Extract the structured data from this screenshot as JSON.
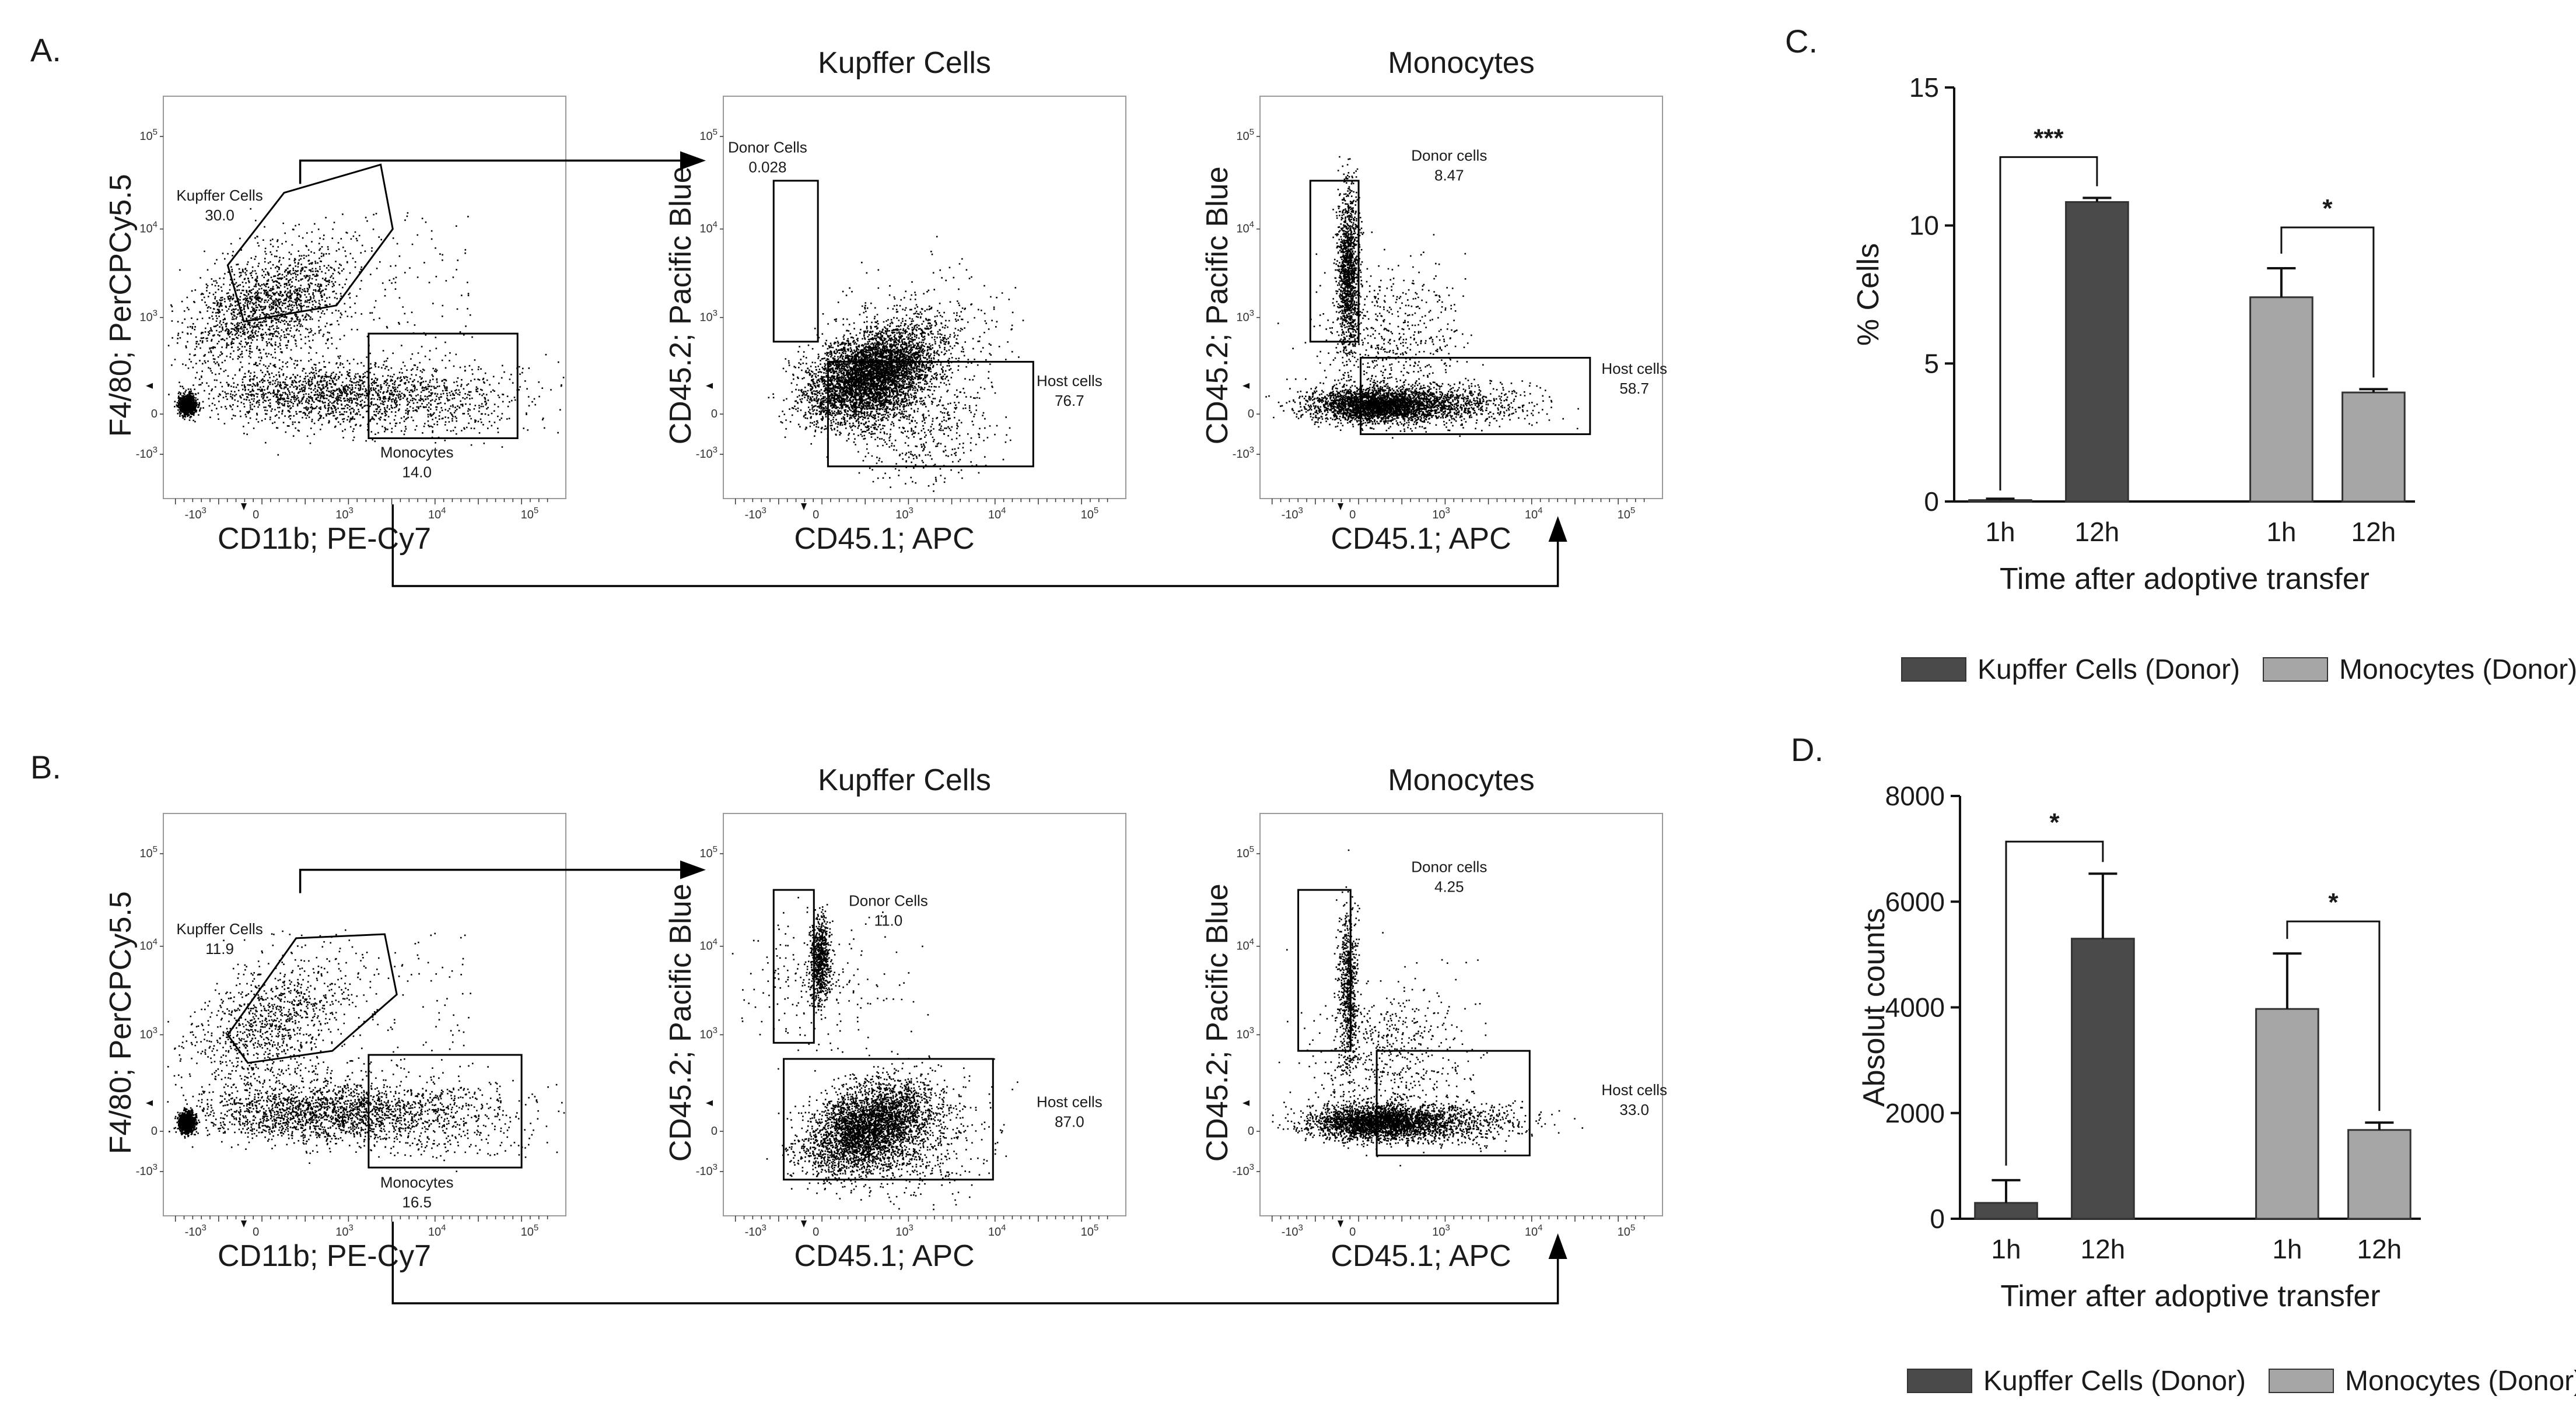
{
  "panels": {
    "a": {
      "letter": "A.",
      "kc_title": "Kupffer Cells",
      "mo_title": "Monocytes"
    },
    "b": {
      "letter": "B.",
      "kc_title": "Kupffer Cells",
      "mo_title": "Monocytes"
    },
    "c": {
      "letter": "C."
    },
    "d": {
      "letter": "D."
    }
  },
  "flow": {
    "axes": {
      "f480": "F4/80; PerCPCy5.5",
      "cd11b": "CD11b; PE-Cy7",
      "cd452": "CD45.2; Pacific Blue",
      "cd451": "CD45.1; APC"
    },
    "ticks": {
      "y_exp": [
        "10^5",
        "10^4",
        "10^3",
        "0",
        "-10^3"
      ],
      "x_exp": [
        "-10^3",
        "0",
        "10^3",
        "10^4",
        "10^5"
      ]
    },
    "a": {
      "gate_kc_name": "Kupffer Cells",
      "gate_kc_value": "30.0",
      "gate_mo_name": "Monocytes",
      "gate_mo_value": "14.0",
      "kc_donor_name": "Donor Cells",
      "kc_donor_value": "0.028",
      "kc_host_name": "Host cells",
      "kc_host_value": "76.7",
      "mo_donor_name": "Donor cells",
      "mo_donor_value": "8.47",
      "mo_host_name": "Host cells",
      "mo_host_value": "58.7"
    },
    "b": {
      "gate_kc_name": "Kupffer Cells",
      "gate_kc_value": "11.9",
      "gate_mo_name": "Monocytes",
      "gate_mo_value": "16.5",
      "kc_donor_name": "Donor Cells",
      "kc_donor_value": "11.0",
      "kc_host_name": "Host cells",
      "kc_host_value": "87.0",
      "mo_donor_name": "Donor cells",
      "mo_donor_value": "4.25",
      "mo_host_name": "Host cells",
      "mo_host_value": "33.0"
    }
  },
  "chart_data": [
    {
      "panel": "C.",
      "type": "bar",
      "title": "",
      "xlabel": "Time after adoptive transfer",
      "ylabel": "% Cells",
      "ylim": [
        0,
        15
      ],
      "yticks": [
        0,
        5,
        10,
        15
      ],
      "categories": [
        "1h",
        "12h",
        "1h",
        "12h"
      ],
      "values": [
        0.05,
        10.85,
        7.4,
        3.95
      ],
      "errors": [
        0.05,
        0.15,
        1.05,
        0.12
      ],
      "groups": [
        "Kupffer Cells (Donor)",
        "Kupffer Cells (Donor)",
        "Monocytes (Donor)",
        "Monocytes (Donor)"
      ],
      "significance": [
        {
          "between": [
            0,
            1
          ],
          "label": "***"
        },
        {
          "between": [
            2,
            3
          ],
          "label": "*"
        }
      ],
      "legend": [
        {
          "name": "Kupffer Cells (Donor)",
          "color": "#4a4a4a"
        },
        {
          "name": "Monocytes (Donor)",
          "color": "#a6a6a6"
        }
      ]
    },
    {
      "panel": "D.",
      "type": "bar",
      "title": "",
      "xlabel": "Timer after adoptive transfer",
      "ylabel": "Absolut counts",
      "ylim": [
        0,
        8000
      ],
      "yticks": [
        0,
        2000,
        4000,
        6000,
        8000
      ],
      "categories": [
        "1h",
        "12h",
        "1h",
        "12h"
      ],
      "values": [
        300,
        5300,
        3970,
        1680
      ],
      "errors": [
        430,
        1230,
        1050,
        140
      ],
      "groups": [
        "Kupffer Cells (Donor)",
        "Kupffer Cells (Donor)",
        "Monocytes (Donor)",
        "Monocytes (Donor)"
      ],
      "significance": [
        {
          "between": [
            0,
            1
          ],
          "label": "*"
        },
        {
          "between": [
            2,
            3
          ],
          "label": "*"
        }
      ],
      "legend": [
        {
          "name": "Kupffer Cells (Donor)",
          "color": "#4a4a4a"
        },
        {
          "name": "Monocytes (Donor)",
          "color": "#a6a6a6"
        }
      ]
    }
  ],
  "colors": {
    "kc_bar": "#4a4a4a",
    "mo_bar": "#a6a6a6",
    "ink": "#1a1a1a"
  }
}
